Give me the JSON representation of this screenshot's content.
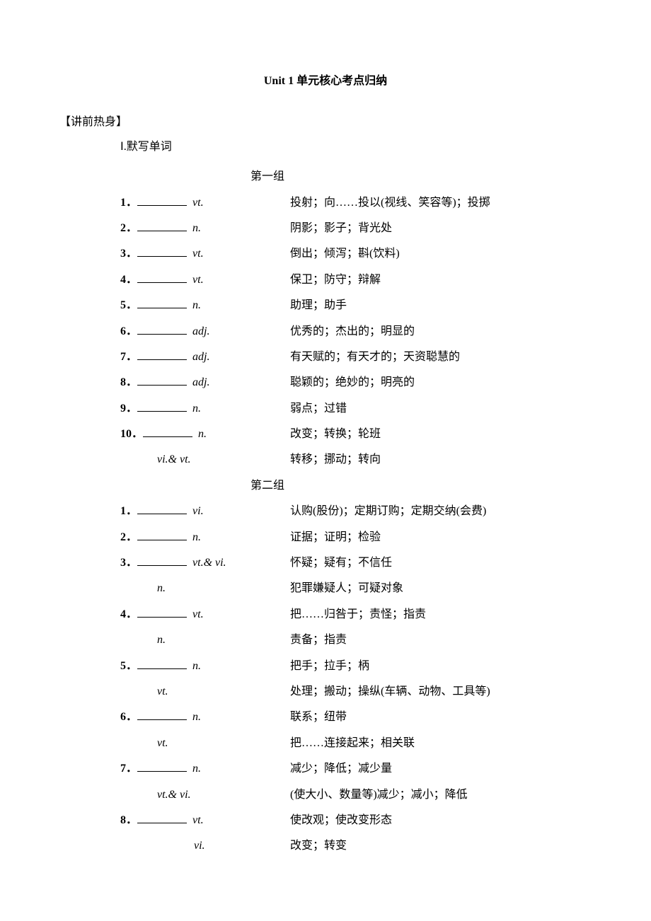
{
  "page": {
    "title": "Unit 1 单元核心考点归纳",
    "warmup_header": "【讲前热身】",
    "writing_words": "Ⅰ.默写单词"
  },
  "groups": [
    {
      "label": "第一组",
      "items": [
        {
          "num": "1．",
          "pos": "vt.",
          "def": "投射；向……投以(视线、笑容等)；投掷"
        },
        {
          "num": "2．",
          "pos": "n.",
          "def": "阴影；影子；背光处"
        },
        {
          "num": "3．",
          "pos": "vt.",
          "def": "倒出；倾泻；斟(饮料)"
        },
        {
          "num": "4．",
          "pos": "vt.",
          "def": "保卫；防守；辩解"
        },
        {
          "num": "5．",
          "pos": "n.",
          "def": "助理；助手"
        },
        {
          "num": "6．",
          "pos": "adj.",
          "def": "优秀的；杰出的；明显的"
        },
        {
          "num": "7．",
          "pos": "adj.",
          "def": "有天赋的；有天才的；天资聪慧的"
        },
        {
          "num": "8．",
          "pos": "adj.",
          "def": "聪颖的；绝妙的；明亮的"
        },
        {
          "num": "9．",
          "pos": "n.",
          "def": "弱点；过错"
        },
        {
          "num": "10．",
          "pos": "n.",
          "def": "改变；转换；轮班",
          "sub": [
            {
              "pos": "vi.& vt.",
              "def": "转移；挪动；转向"
            }
          ]
        }
      ]
    },
    {
      "label": "第二组",
      "items": [
        {
          "num": "1．",
          "pos": "vi.",
          "def": "认购(股份)；定期订购；定期交纳(会费)"
        },
        {
          "num": "2．",
          "pos": "n.",
          "def": "证据；证明；检验"
        },
        {
          "num": "3．",
          "pos": "vt.& vi.",
          "def": "怀疑；疑有；不信任",
          "sub": [
            {
              "pos": "n.",
              "def": "犯罪嫌疑人；可疑对象"
            }
          ]
        },
        {
          "num": "4．",
          "pos": "vt.",
          "def": "把……归咎于；责怪；指责",
          "sub": [
            {
              "pos": "n.",
              "def": "责备；指责"
            }
          ]
        },
        {
          "num": "5．",
          "pos": "n.",
          "def": "把手；拉手；柄",
          "sub": [
            {
              "pos": "vt.",
              "def": "处理；搬动；操纵(车辆、动物、工具等)"
            }
          ]
        },
        {
          "num": "6．",
          "pos": "n.",
          "def": "联系；纽带",
          "sub": [
            {
              "pos": "vt.",
              "def": "把……连接起来；相关联"
            }
          ]
        },
        {
          "num": "7．",
          "pos": "n.",
          "def": "减少；降低；减少量",
          "sub": [
            {
              "pos": "vt.& vi.",
              "def": "(使大小、数量等)减少；减小；降低"
            }
          ]
        },
        {
          "num": "8．",
          "pos": "vt.",
          "def": "使改观；使改变形态",
          "sub": [
            {
              "pos": "vi.",
              "def": "改变；转变",
              "indent": true
            }
          ]
        }
      ]
    }
  ]
}
